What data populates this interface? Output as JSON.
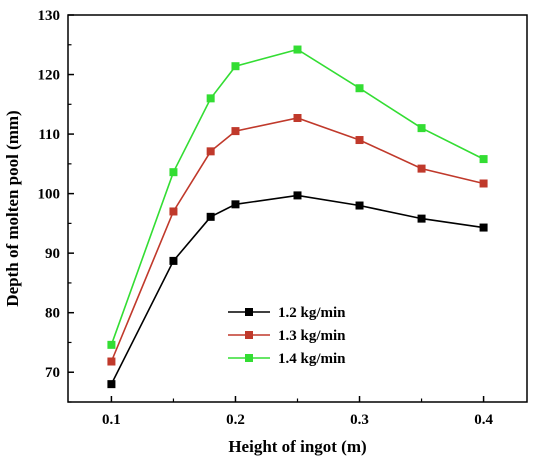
{
  "chart_data": {
    "type": "line",
    "xlabel": "Height of ingot (m)",
    "ylabel": "Depth of molten pool (mm)",
    "xlim": [
      0.065,
      0.435
    ],
    "ylim": [
      65,
      130
    ],
    "xticks": [
      0.1,
      0.2,
      0.3,
      0.4
    ],
    "xticks_minor": [
      0.15,
      0.25,
      0.35
    ],
    "yticks": [
      70,
      80,
      90,
      100,
      110,
      120,
      130
    ],
    "x": [
      0.1,
      0.15,
      0.18,
      0.2,
      0.25,
      0.3,
      0.35,
      0.4
    ],
    "legend_position": "lower-center",
    "grid": false,
    "series": [
      {
        "name": "1.2 kg/min",
        "color": "#000000",
        "marker": "square",
        "values": [
          68.0,
          88.7,
          96.1,
          98.2,
          99.7,
          98.0,
          95.8,
          94.3
        ]
      },
      {
        "name": "1.3 kg/min",
        "color": "#c0392b",
        "marker": "square",
        "values": [
          71.8,
          97.0,
          107.1,
          110.5,
          112.7,
          109.0,
          104.2,
          101.7
        ]
      },
      {
        "name": "1.4 kg/min",
        "color": "#33dd33",
        "marker": "square",
        "values": [
          74.6,
          103.6,
          116.0,
          121.4,
          124.2,
          117.7,
          111.0,
          105.8
        ]
      }
    ]
  }
}
